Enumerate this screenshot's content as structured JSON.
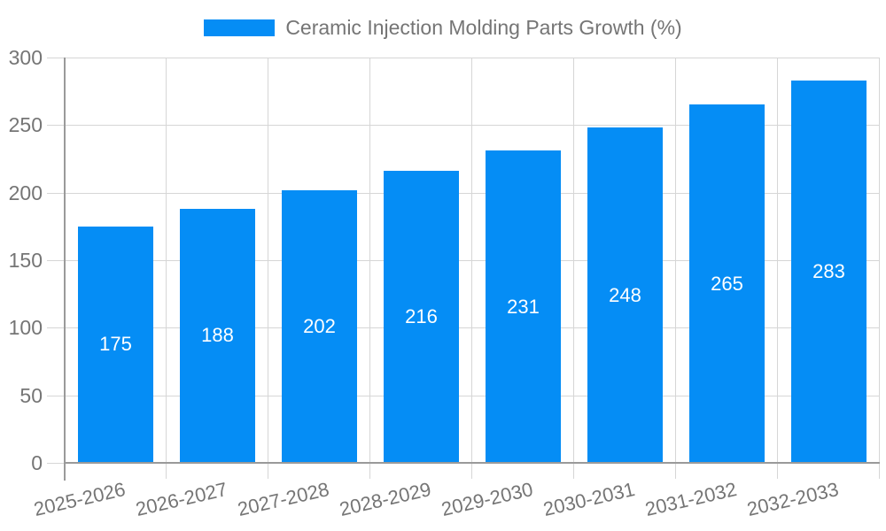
{
  "chart_data": {
    "type": "bar",
    "categories": [
      "2025-2026",
      "2026-2027",
      "2027-2028",
      "2028-2029",
      "2029-2030",
      "2030-2031",
      "2031-2032",
      "2032-2033"
    ],
    "series": [
      {
        "name": "Ceramic Injection Molding Parts Growth (%)",
        "values": [
          175,
          188,
          202,
          216,
          231,
          248,
          265,
          283
        ]
      }
    ],
    "title": "",
    "xlabel": "",
    "ylabel": "",
    "ylim": [
      0,
      300
    ],
    "yticks": [
      0,
      50,
      100,
      150,
      200,
      250,
      300
    ],
    "grid": true,
    "legend_position": "top-center",
    "x_label_rotation_deg": -13,
    "bar_labels_inside_middle": true,
    "colors": {
      "bar": "#058DF5",
      "bar_value_label": "#FFFFFF",
      "axis_text": "#757575",
      "axis_line": "#9A9A9A",
      "grid_line": "#D6D6D6"
    }
  }
}
